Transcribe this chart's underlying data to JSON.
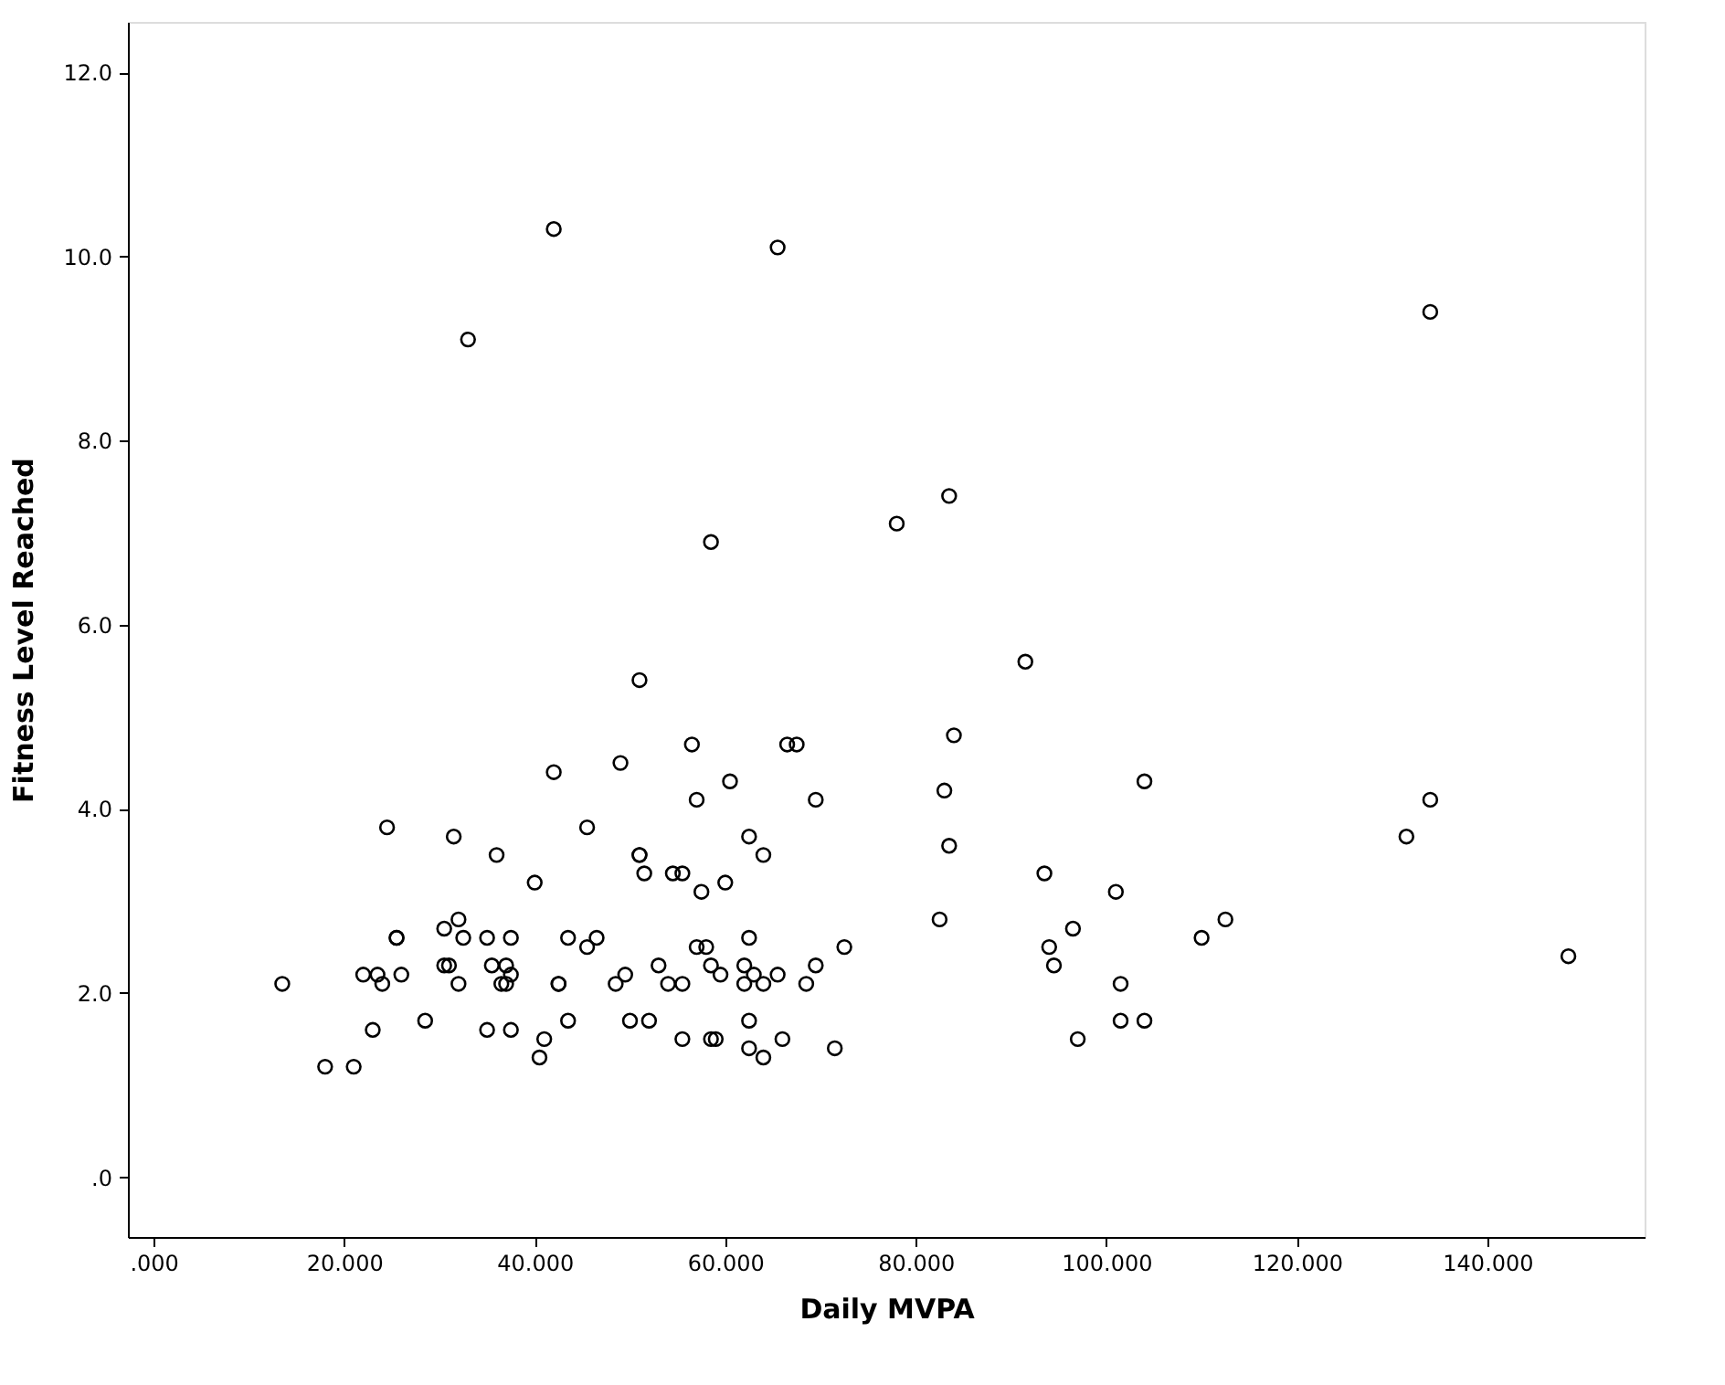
{
  "chart_data": {
    "type": "scatter",
    "xlabel": "Daily MVPA",
    "ylabel": "Fitness Level Reached",
    "xlim": [
      -2.7,
      156.5
    ],
    "ylim": [
      -0.65,
      12.55
    ],
    "xticks": [
      {
        "value": 0,
        "label": ".000"
      },
      {
        "value": 20,
        "label": "20.000"
      },
      {
        "value": 40,
        "label": "40.000"
      },
      {
        "value": 60,
        "label": "60.000"
      },
      {
        "value": 80,
        "label": "80.000"
      },
      {
        "value": 100,
        "label": "100.000"
      },
      {
        "value": 120,
        "label": "120.000"
      },
      {
        "value": 140,
        "label": "140.000"
      }
    ],
    "yticks": [
      {
        "value": 0,
        "label": ".0"
      },
      {
        "value": 2,
        "label": "2.0"
      },
      {
        "value": 4,
        "label": "4.0"
      },
      {
        "value": 6,
        "label": "6.0"
      },
      {
        "value": 8,
        "label": "8.0"
      },
      {
        "value": 10,
        "label": "10.0"
      },
      {
        "value": 12,
        "label": "12.0"
      }
    ],
    "marker": "circle",
    "grid": false,
    "series": [
      {
        "color": "#000000",
        "x": [
          42,
          65.5,
          33,
          134,
          83.5,
          78,
          58.5,
          91.5,
          51,
          84,
          56.5,
          66.5,
          67.5,
          49,
          42,
          60.5,
          104,
          83,
          57,
          69.5,
          134,
          24.5,
          45.5,
          31.5,
          62.5,
          131.5,
          83.5,
          36,
          51,
          51,
          64,
          93.5,
          51.5,
          54.5,
          55.5,
          40,
          60,
          57.5,
          101,
          32,
          82.5,
          112.5,
          30.5,
          96.5,
          25.5,
          25.5,
          32.5,
          35,
          37.5,
          43.5,
          46.5,
          62.5,
          110,
          45.5,
          57,
          58,
          72.5,
          94,
          148.5,
          30.5,
          31,
          35.5,
          37,
          53,
          58.5,
          62,
          69.5,
          94.5,
          22,
          23.5,
          26,
          37.5,
          49.5,
          59.5,
          63,
          65.5,
          13.5,
          24,
          32,
          36.5,
          37,
          42.5,
          42.5,
          48.5,
          54,
          55.5,
          62,
          64,
          68.5,
          101.5,
          23,
          35,
          37.5,
          43.5,
          28.5,
          50,
          52,
          62.5,
          101.5,
          104,
          41,
          55.5,
          58.5,
          59,
          66,
          97,
          62.5,
          71.5,
          40.5,
          64,
          18,
          21
        ],
        "values": [
          10.3,
          10.1,
          9.1,
          9.4,
          7.4,
          7.1,
          6.9,
          5.6,
          5.4,
          4.8,
          4.7,
          4.7,
          4.7,
          4.5,
          4.4,
          4.3,
          4.3,
          4.2,
          4.1,
          4.1,
          4.1,
          3.8,
          3.8,
          3.7,
          3.7,
          3.7,
          3.6,
          3.5,
          3.5,
          3.5,
          3.5,
          3.3,
          3.3,
          3.3,
          3.3,
          3.2,
          3.2,
          3.1,
          3.1,
          2.8,
          2.8,
          2.8,
          2.7,
          2.7,
          2.6,
          2.6,
          2.6,
          2.6,
          2.6,
          2.6,
          2.6,
          2.6,
          2.6,
          2.5,
          2.5,
          2.5,
          2.5,
          2.5,
          2.4,
          2.3,
          2.3,
          2.3,
          2.3,
          2.3,
          2.3,
          2.3,
          2.3,
          2.3,
          2.2,
          2.2,
          2.2,
          2.2,
          2.2,
          2.2,
          2.2,
          2.2,
          2.1,
          2.1,
          2.1,
          2.1,
          2.1,
          2.1,
          2.1,
          2.1,
          2.1,
          2.1,
          2.1,
          2.1,
          2.1,
          2.1,
          1.6,
          1.6,
          1.6,
          1.7,
          1.7,
          1.7,
          1.7,
          1.7,
          1.7,
          1.7,
          1.5,
          1.5,
          1.5,
          1.5,
          1.5,
          1.5,
          1.4,
          1.4,
          1.3,
          1.3,
          1.2,
          1.2
        ]
      }
    ]
  }
}
